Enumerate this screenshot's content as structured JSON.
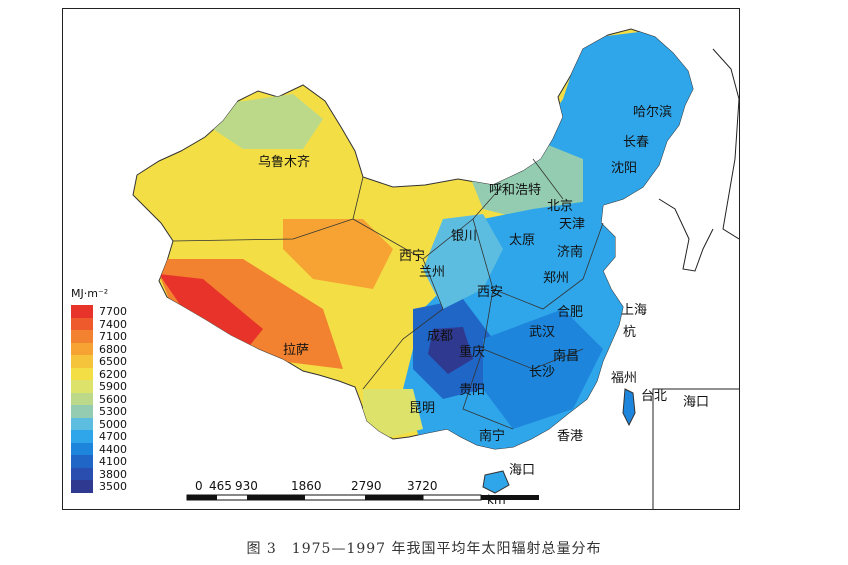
{
  "legend": {
    "unit": "MJ·m⁻²",
    "items": [
      {
        "label": "7700",
        "color": "#e8332a"
      },
      {
        "label": "7400",
        "color": "#ee5a2c"
      },
      {
        "label": "7100",
        "color": "#f2822f"
      },
      {
        "label": "6800",
        "color": "#f6a333"
      },
      {
        "label": "6500",
        "color": "#f6c43a"
      },
      {
        "label": "6200",
        "color": "#f3de45"
      },
      {
        "label": "5900",
        "color": "#dde36a"
      },
      {
        "label": "5600",
        "color": "#bcd98a"
      },
      {
        "label": "5300",
        "color": "#93ccb0"
      },
      {
        "label": "5000",
        "color": "#5cbde0"
      },
      {
        "label": "4700",
        "color": "#2fa6ea"
      },
      {
        "label": "4400",
        "color": "#1d86dc"
      },
      {
        "label": "4100",
        "color": "#1f66c6"
      },
      {
        "label": "3800",
        "color": "#2a4eaf"
      },
      {
        "label": "3500",
        "color": "#2f3990"
      }
    ]
  },
  "cities": [
    {
      "name": "乌鲁木齐"
    },
    {
      "name": "哈尔滨"
    },
    {
      "name": "长春"
    },
    {
      "name": "沈阳"
    },
    {
      "name": "呼和浩特"
    },
    {
      "name": "北京"
    },
    {
      "name": "天津"
    },
    {
      "name": "银川"
    },
    {
      "name": "太原"
    },
    {
      "name": "济南"
    },
    {
      "name": "西宁"
    },
    {
      "name": "兰州"
    },
    {
      "name": "郑州"
    },
    {
      "name": "西安"
    },
    {
      "name": "合肥"
    },
    {
      "name": "上海"
    },
    {
      "name": "拉萨"
    },
    {
      "name": "成都"
    },
    {
      "name": "武汉"
    },
    {
      "name": "杭"
    },
    {
      "name": "重庆"
    },
    {
      "name": "南昌"
    },
    {
      "name": "长沙"
    },
    {
      "name": "福州"
    },
    {
      "name": "台北"
    },
    {
      "name": "海口"
    },
    {
      "name": "贵阳"
    },
    {
      "name": "昆明"
    },
    {
      "name": "南宁"
    },
    {
      "name": "香港"
    },
    {
      "name": "海口"
    }
  ],
  "scalebar": {
    "ticks": [
      "0",
      "465",
      "930",
      "1860",
      "2790",
      "3720"
    ],
    "unit": "km"
  },
  "caption": "图 3　1975—1997 年我国平均年太阳辐射总量分布"
}
